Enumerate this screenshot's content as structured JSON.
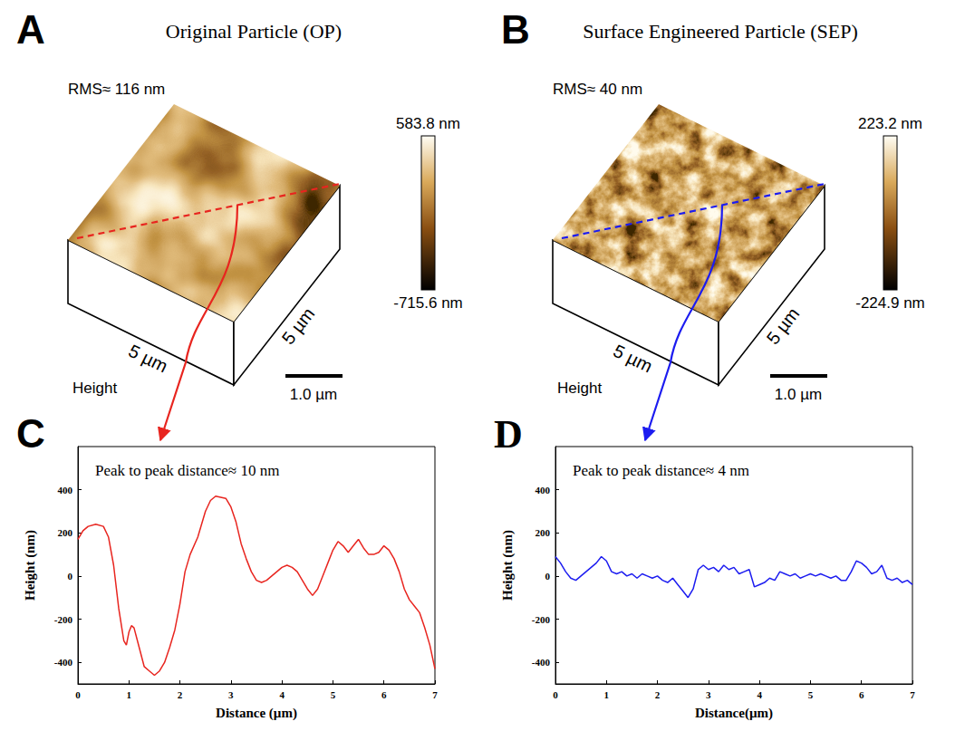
{
  "panels": [
    {
      "panel_label": "A",
      "title": "Original Particle (OP)",
      "rms": "RMS≈ 116 nm",
      "size_labels": [
        "5 µm",
        "5 µm"
      ],
      "channel": "Height",
      "scale_bar": "1.0 µm",
      "color_range": [
        {
          "value": -715.6,
          "label": "-715.6 nm"
        },
        {
          "value": 583.8,
          "label": "583.8 nm"
        }
      ],
      "color": "#e8251f"
    },
    {
      "panel_label": "B",
      "title": "Surface Engineered Particle (SEP)",
      "rms": "RMS≈ 40 nm",
      "size_labels": [
        "5 µm",
        "5 µm"
      ],
      "channel": "Height",
      "scale_bar": "1.0 µm",
      "color_range": [
        {
          "value": -224.9,
          "label": "-224.9 nm"
        },
        {
          "value": 223.2,
          "label": "223.2 nm"
        }
      ],
      "color": "#1c1cf0"
    }
  ],
  "chart_data": [
    {
      "type": "line",
      "panel_label": "C",
      "annotation": "Peak to peak distance≈ 10 nm",
      "x_label": "Distance (µm)",
      "y_label": "Height (nm)",
      "color": "#e8251f",
      "xlim": [
        0,
        7
      ],
      "xticks": [
        0,
        1,
        2,
        3,
        4,
        5,
        6,
        7
      ],
      "ylim": [
        -500,
        600
      ],
      "yticks": [
        -400,
        -200,
        0,
        200,
        400
      ],
      "x": [
        0,
        0.1,
        0.2,
        0.35,
        0.5,
        0.6,
        0.7,
        0.8,
        0.9,
        0.95,
        1.0,
        1.05,
        1.1,
        1.2,
        1.3,
        1.4,
        1.5,
        1.6,
        1.7,
        1.8,
        1.9,
        2.0,
        2.1,
        2.2,
        2.35,
        2.5,
        2.6,
        2.7,
        2.8,
        2.9,
        3.0,
        3.1,
        3.2,
        3.3,
        3.4,
        3.5,
        3.6,
        3.7,
        3.8,
        3.9,
        4.0,
        4.1,
        4.2,
        4.3,
        4.4,
        4.5,
        4.6,
        4.7,
        4.8,
        4.9,
        5.0,
        5.1,
        5.2,
        5.3,
        5.4,
        5.5,
        5.6,
        5.7,
        5.8,
        5.9,
        6.0,
        6.1,
        6.2,
        6.3,
        6.4,
        6.5,
        6.6,
        6.7,
        6.8,
        6.9,
        7.0
      ],
      "values": [
        170,
        210,
        230,
        240,
        230,
        180,
        50,
        -150,
        -300,
        -320,
        -260,
        -230,
        -240,
        -330,
        -420,
        -440,
        -460,
        -440,
        -400,
        -330,
        -250,
        -130,
        20,
        100,
        180,
        300,
        350,
        370,
        365,
        360,
        320,
        250,
        150,
        80,
        20,
        -20,
        -30,
        -20,
        0,
        20,
        40,
        50,
        40,
        20,
        -20,
        -60,
        -90,
        -60,
        0,
        60,
        120,
        160,
        140,
        110,
        140,
        170,
        130,
        100,
        100,
        110,
        140,
        120,
        80,
        20,
        -60,
        -110,
        -140,
        -170,
        -240,
        -320,
        -430
      ]
    },
    {
      "type": "line",
      "panel_label": "D",
      "annotation": "Peak to peak distance≈ 4 nm",
      "x_label": "Distance(µm)",
      "y_label": "Height (nm)",
      "color": "#1c1cf0",
      "xlim": [
        0,
        7
      ],
      "xticks": [
        0,
        1,
        2,
        3,
        4,
        5,
        6,
        7
      ],
      "ylim": [
        -500,
        600
      ],
      "yticks": [
        -400,
        -200,
        0,
        200,
        400
      ],
      "x": [
        0,
        0.1,
        0.2,
        0.3,
        0.4,
        0.5,
        0.6,
        0.7,
        0.8,
        0.9,
        1.0,
        1.1,
        1.2,
        1.3,
        1.4,
        1.5,
        1.6,
        1.7,
        1.8,
        1.9,
        2.0,
        2.1,
        2.2,
        2.3,
        2.4,
        2.5,
        2.6,
        2.7,
        2.8,
        2.9,
        3.0,
        3.1,
        3.2,
        3.3,
        3.4,
        3.5,
        3.6,
        3.7,
        3.8,
        3.9,
        4.0,
        4.1,
        4.2,
        4.3,
        4.4,
        4.5,
        4.6,
        4.7,
        4.8,
        4.9,
        5.0,
        5.1,
        5.2,
        5.3,
        5.4,
        5.5,
        5.6,
        5.7,
        5.8,
        5.9,
        6.0,
        6.1,
        6.2,
        6.3,
        6.4,
        6.5,
        6.6,
        6.7,
        6.8,
        6.9,
        7.0
      ],
      "values": [
        90,
        60,
        20,
        -10,
        -20,
        0,
        20,
        40,
        60,
        90,
        70,
        20,
        10,
        20,
        0,
        10,
        -10,
        10,
        0,
        -10,
        0,
        -20,
        -30,
        -10,
        -40,
        -70,
        -100,
        -60,
        30,
        50,
        30,
        40,
        20,
        50,
        30,
        40,
        10,
        20,
        30,
        -50,
        -40,
        -30,
        -10,
        -20,
        20,
        10,
        0,
        10,
        -10,
        0,
        10,
        0,
        10,
        0,
        -10,
        0,
        -20,
        -20,
        20,
        70,
        60,
        40,
        10,
        20,
        50,
        -10,
        -20,
        -10,
        -30,
        -20,
        -40
      ]
    }
  ]
}
